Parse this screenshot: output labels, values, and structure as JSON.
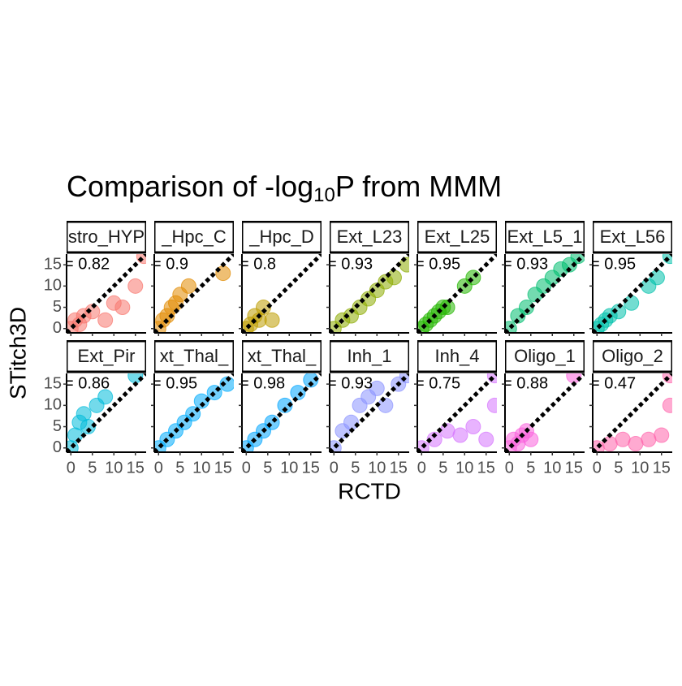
{
  "chart_data": {
    "type": "scatter",
    "title_parts": [
      "Comparison of -log",
      "10",
      "P from MMM"
    ],
    "xlabel": "RCTD",
    "ylabel": "STitch3D",
    "xlim": [
      -1,
      17.5
    ],
    "ylim": [
      -1,
      17.5
    ],
    "xticks": [
      0,
      5,
      10,
      15
    ],
    "yticks": [
      0,
      5,
      10,
      15
    ],
    "facets": [
      {
        "title": "stro_HYP",
        "r_label": "= 0.82",
        "color": "#F8766D",
        "x": [
          0,
          1,
          2,
          3,
          5,
          8,
          10,
          12,
          15,
          17
        ],
        "y": [
          0,
          2,
          1,
          3,
          4,
          2,
          6,
          5,
          10,
          17
        ]
      },
      {
        "title": "_Hpc_C",
        "r_label": "= 0.9",
        "color": "#E18A00",
        "x": [
          0,
          1,
          2,
          3,
          4,
          5,
          7,
          15
        ],
        "y": [
          0,
          2,
          3,
          5,
          6,
          8,
          10,
          13
        ]
      },
      {
        "title": "_Hpc_D",
        "r_label": "= 0.8",
        "color": "#BE9C00",
        "x": [
          0,
          1,
          2,
          3,
          4,
          6
        ],
        "y": [
          0,
          1,
          3,
          2,
          5,
          2
        ]
      },
      {
        "title": "Ext_L23",
        "r_label": "= 0.93",
        "color": "#8CAB00",
        "x": [
          0,
          2,
          4,
          6,
          8,
          10,
          12,
          14,
          17
        ],
        "y": [
          0,
          2,
          3,
          5,
          7,
          9,
          11,
          12,
          15
        ]
      },
      {
        "title": "Ext_L25",
        "r_label": "= 0.95",
        "color": "#24B700",
        "x": [
          0,
          1,
          2,
          3,
          4,
          5,
          6,
          10,
          12
        ],
        "y": [
          0,
          1,
          2,
          3,
          4,
          5,
          5,
          10,
          12
        ]
      },
      {
        "title": "Ext_L5_1",
        "r_label": "= 0.93",
        "color": "#00BE70",
        "x": [
          0,
          2,
          4,
          6,
          8,
          10,
          12,
          14,
          16
        ],
        "y": [
          0,
          3,
          5,
          8,
          10,
          12,
          14,
          15,
          17
        ]
      },
      {
        "title": "Ext_L56",
        "r_label": "= 0.95",
        "color": "#00C1AB",
        "x": [
          0,
          1,
          2,
          3,
          5,
          8,
          12,
          14,
          17
        ],
        "y": [
          0,
          1,
          2,
          3,
          4,
          6,
          10,
          12,
          17
        ]
      },
      {
        "title": "Ext_Pir",
        "r_label": "= 0.86",
        "color": "#00BBDA",
        "x": [
          0,
          1,
          2,
          3,
          4,
          6,
          8,
          15
        ],
        "y": [
          0,
          3,
          6,
          8,
          5,
          10,
          12,
          17
        ]
      },
      {
        "title": "xt_Thal_",
        "r_label": "= 0.95",
        "color": "#00ACFC",
        "x": [
          0,
          2,
          4,
          6,
          8,
          10,
          13,
          16
        ],
        "y": [
          0,
          2,
          4,
          6,
          8,
          11,
          13,
          15
        ]
      },
      {
        "title": "xt_Thal_",
        "r_label": "= 0.98",
        "color": "#00A5FF",
        "x": [
          0,
          2,
          4,
          6,
          9,
          12,
          15
        ],
        "y": [
          0,
          2,
          4,
          6,
          10,
          13,
          16
        ]
      },
      {
        "title": "Inh_1",
        "r_label": "= 0.93",
        "color": "#8B93FF",
        "x": [
          0,
          2,
          4,
          6,
          8,
          10,
          12,
          15,
          17
        ],
        "y": [
          0,
          4,
          6,
          10,
          12,
          14,
          10,
          15,
          17
        ]
      },
      {
        "title": "Inh_4",
        "r_label": "= 0.75",
        "color": "#D575FE",
        "x": [
          0,
          3,
          6,
          9,
          12,
          15,
          17,
          17
        ],
        "y": [
          0,
          2,
          4,
          3,
          5,
          2,
          10,
          17
        ]
      },
      {
        "title": "Oligo_1",
        "r_label": "= 0.88",
        "color": "#F962DD",
        "x": [
          0,
          1,
          2,
          3,
          4,
          5,
          15
        ],
        "y": [
          0,
          2,
          1,
          3,
          4,
          2,
          17
        ]
      },
      {
        "title": "Oligo_2",
        "r_label": "= 0.47",
        "color": "#FF65AC",
        "x": [
          0,
          3,
          6,
          9,
          12,
          15,
          17,
          17
        ],
        "y": [
          0,
          1,
          2,
          1,
          2,
          3,
          10,
          17
        ]
      }
    ]
  }
}
